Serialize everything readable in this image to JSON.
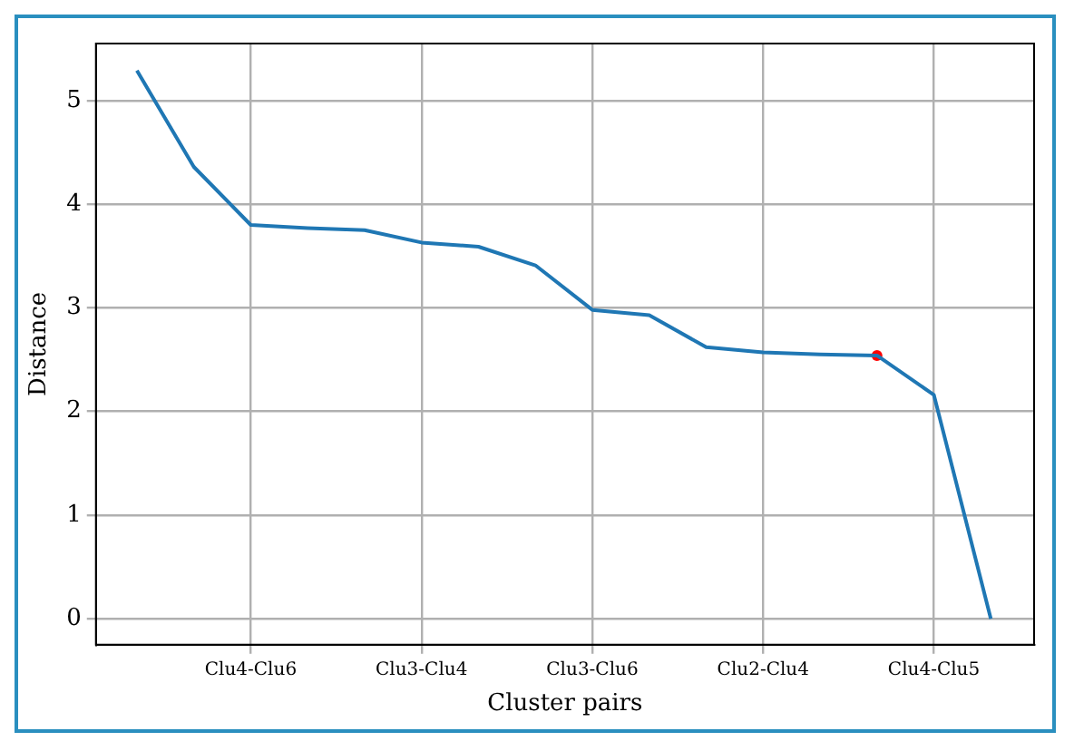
{
  "chart_data": {
    "type": "line",
    "xlabel": "Cluster pairs",
    "ylabel": "Distance",
    "categories": [
      null,
      null,
      "Clu4-Clu6",
      null,
      null,
      "Clu3-Clu4",
      null,
      null,
      "Clu3-Clu6",
      null,
      null,
      "Clu2-Clu4",
      null,
      null,
      "Clu4-Clu5",
      null
    ],
    "series": [
      {
        "type": "line",
        "marker": "none",
        "color": "#1f77b4",
        "values": [
          5.29,
          4.36,
          3.8,
          3.77,
          3.75,
          3.63,
          3.59,
          3.41,
          2.98,
          2.93,
          2.62,
          2.57,
          2.55,
          2.54,
          2.16,
          0
        ]
      },
      {
        "type": "scatter",
        "marker": "circle",
        "color": "#ff0000",
        "values": [
          null,
          null,
          null,
          null,
          null,
          null,
          null,
          null,
          null,
          null,
          null,
          null,
          null,
          2.54,
          null,
          null
        ]
      }
    ],
    "ylim": [
      -0.25,
      5.55
    ],
    "yticks": [
      0,
      1,
      2,
      3,
      4,
      5
    ],
    "grid": true,
    "legend": false
  }
}
